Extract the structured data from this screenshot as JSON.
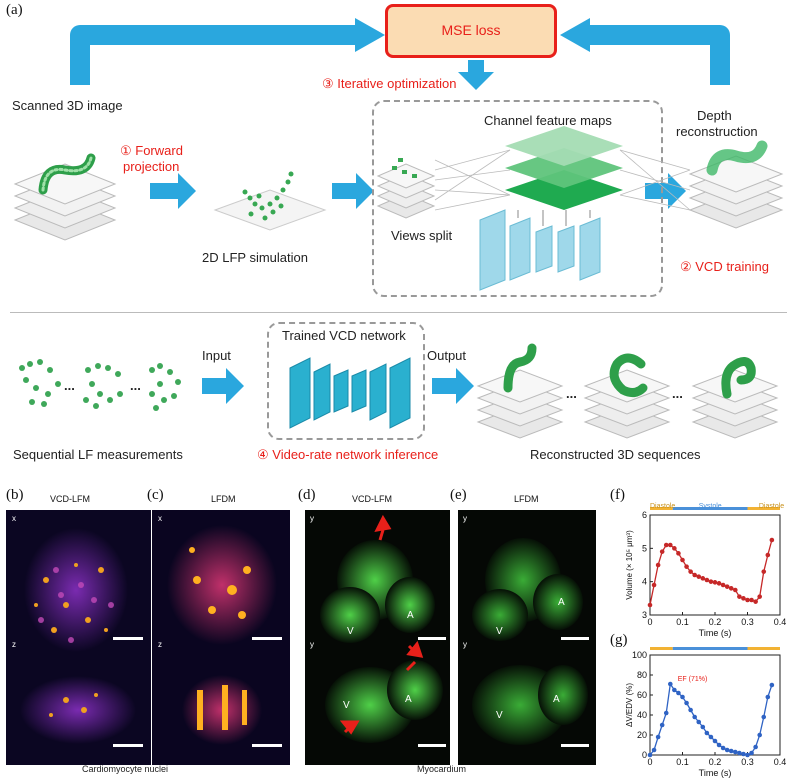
{
  "panel_a": {
    "letter": "(a)",
    "mse_loss": "MSE loss",
    "iterative": "③ Iterative optimization",
    "scanned": "Scanned 3D image",
    "forward_line1": "① Forward",
    "forward_line2": "projection",
    "lfp_sim": "2D LFP simulation",
    "channel_maps": "Channel feature maps",
    "views_split": "Views split",
    "depth_line1": "Depth",
    "depth_line2": "reconstruction",
    "vcd_training": "② VCD training",
    "input": "Input",
    "trained_vcd": "Trained VCD network",
    "output": "Output",
    "ellipsis": "...",
    "seq_lf": "Sequential LF measurements",
    "video_rate": "④ Video-rate network inference",
    "reconstructed": "Reconstructed 3D sequences"
  },
  "panel_b": {
    "letter": "(b)",
    "title": "VCD-LFM"
  },
  "panel_c": {
    "letter": "(c)",
    "title": "LFDM"
  },
  "panel_d": {
    "letter": "(d)",
    "title": "VCD-LFM",
    "label_A": "A",
    "label_V": "V"
  },
  "panel_e": {
    "letter": "(e)",
    "title": "LFDM",
    "label_A": "A",
    "label_V": "V"
  },
  "axes": {
    "x": "x",
    "y": "y",
    "z": "z"
  },
  "captions": {
    "nuclei": "Cardiomyocyte nuclei",
    "myocardium": "Myocardium"
  },
  "phases": {
    "diastole": "Diastole",
    "systole": "Systole"
  },
  "colors": {
    "diastole": "#f2b233",
    "systole": "#4a90d9",
    "arrow": "#2aa7de",
    "red": "#e8201a",
    "volume_line": "#c62828",
    "ef_line": "#2f63c4"
  },
  "chart_data": [
    {
      "panel": "(f)",
      "type": "line",
      "xlabel": "Time (s)",
      "ylabel": "Volume (× 10⁵ μm³)",
      "xlim": [
        0,
        0.4
      ],
      "ylim": [
        3,
        6
      ],
      "xticks": [
        "0",
        "0.1",
        "0.2",
        "0.3",
        "0.4"
      ],
      "yticks": [
        "3",
        "4",
        "5",
        "6"
      ],
      "x": [
        0.0,
        0.0125,
        0.025,
        0.0375,
        0.05,
        0.0625,
        0.075,
        0.0875,
        0.1,
        0.1125,
        0.125,
        0.1375,
        0.15,
        0.1625,
        0.175,
        0.1875,
        0.2,
        0.2125,
        0.225,
        0.2375,
        0.25,
        0.2625,
        0.275,
        0.2875,
        0.3,
        0.3125,
        0.325,
        0.3375,
        0.35,
        0.3625,
        0.375
      ],
      "y": [
        3.3,
        3.9,
        4.5,
        4.9,
        5.1,
        5.1,
        5.0,
        4.85,
        4.65,
        4.45,
        4.3,
        4.2,
        4.15,
        4.1,
        4.05,
        4.0,
        3.98,
        3.95,
        3.9,
        3.85,
        3.8,
        3.75,
        3.55,
        3.5,
        3.45,
        3.45,
        3.4,
        3.55,
        4.3,
        4.8,
        5.25
      ],
      "grid": false
    },
    {
      "panel": "(g)",
      "type": "line",
      "xlabel": "Time (s)",
      "ylabel": "ΔV/EDV (%)",
      "xlim": [
        0,
        0.4
      ],
      "ylim": [
        0,
        100
      ],
      "xticks": [
        "0",
        "0.1",
        "0.2",
        "0.3",
        "0.4"
      ],
      "yticks": [
        "0",
        "20",
        "40",
        "60",
        "80",
        "100"
      ],
      "annotation": "EF (71%)",
      "x": [
        0.0,
        0.0125,
        0.025,
        0.0375,
        0.05,
        0.0625,
        0.075,
        0.0875,
        0.1,
        0.1125,
        0.125,
        0.1375,
        0.15,
        0.1625,
        0.175,
        0.1875,
        0.2,
        0.2125,
        0.225,
        0.2375,
        0.25,
        0.2625,
        0.275,
        0.2875,
        0.3,
        0.3125,
        0.325,
        0.3375,
        0.35,
        0.3625,
        0.375
      ],
      "y": [
        0,
        5,
        18,
        30,
        42,
        71,
        65,
        62,
        58,
        52,
        45,
        38,
        33,
        28,
        22,
        18,
        14,
        10,
        7,
        5,
        4,
        3,
        2,
        1,
        0,
        2,
        8,
        20,
        38,
        58,
        70
      ],
      "grid": false
    }
  ]
}
